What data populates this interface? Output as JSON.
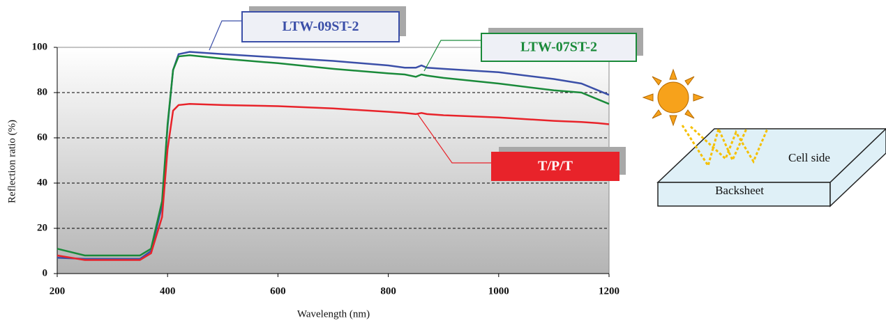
{
  "chart_data": {
    "type": "line",
    "x_label": "Wavelength (nm)",
    "y_label": "Reflection ratio (%)",
    "x": [
      200,
      250,
      300,
      350,
      370,
      390,
      400,
      410,
      420,
      440,
      500,
      600,
      700,
      800,
      830,
      850,
      860,
      870,
      900,
      1000,
      1100,
      1150,
      1180,
      1200
    ],
    "series": [
      {
        "name": "LTW-09ST-2",
        "color": "#3b4fa8",
        "values": [
          7,
          6.5,
          6.5,
          6.5,
          10,
          30,
          65,
          90,
          97,
          98,
          97,
          95.5,
          94,
          92,
          91,
          91,
          92,
          91,
          90.5,
          89,
          86,
          84,
          81,
          79
        ]
      },
      {
        "name": "LTW-07ST-2",
        "color": "#1a8a3a",
        "values": [
          11,
          8,
          8,
          8,
          11,
          32,
          66,
          90,
          96,
          96.5,
          95,
          93,
          90.5,
          88.5,
          88,
          87,
          88,
          87.5,
          86.5,
          84,
          81,
          80,
          77,
          75
        ]
      },
      {
        "name": "T/P/T",
        "color": "#e8232a",
        "values": [
          8,
          6,
          6,
          6,
          9,
          25,
          55,
          72,
          74.5,
          75,
          74.5,
          74,
          73,
          71.5,
          71,
          70.5,
          71,
          70.5,
          70,
          69,
          67.5,
          67,
          66.5,
          66
        ]
      }
    ],
    "xlim": [
      200,
      1200
    ],
    "xticks": [
      200,
      400,
      600,
      800,
      1000,
      1200
    ],
    "ylim": [
      0,
      100
    ],
    "yticks": [
      0,
      20,
      40,
      60,
      80,
      100
    ],
    "grid": true
  },
  "diagram": {
    "cell_side": "Cell side",
    "backsheet": "Backsheet"
  }
}
